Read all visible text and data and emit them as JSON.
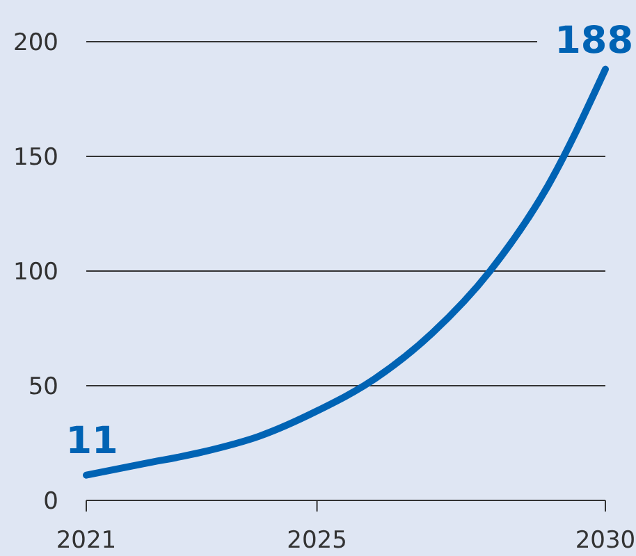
{
  "chart_data": {
    "type": "line",
    "x": [
      2021,
      2022,
      2023,
      2024,
      2025,
      2026,
      2027,
      2028,
      2029,
      2030
    ],
    "series": [
      {
        "color": "#0063b4",
        "values": [
          11,
          16,
          21,
          28,
          39,
          53,
          73,
          100,
          137,
          188
        ],
        "value_labels": [
          "11",
          null,
          null,
          null,
          null,
          null,
          null,
          null,
          null,
          "188"
        ]
      }
    ],
    "xlim": [
      2021,
      2030
    ],
    "xticks": [
      2021,
      2025,
      2030
    ],
    "ylim": [
      0,
      200
    ],
    "yticks": [
      0,
      50,
      100,
      150,
      200
    ],
    "grid": "y",
    "marker": "none",
    "line_style": "solid"
  }
}
